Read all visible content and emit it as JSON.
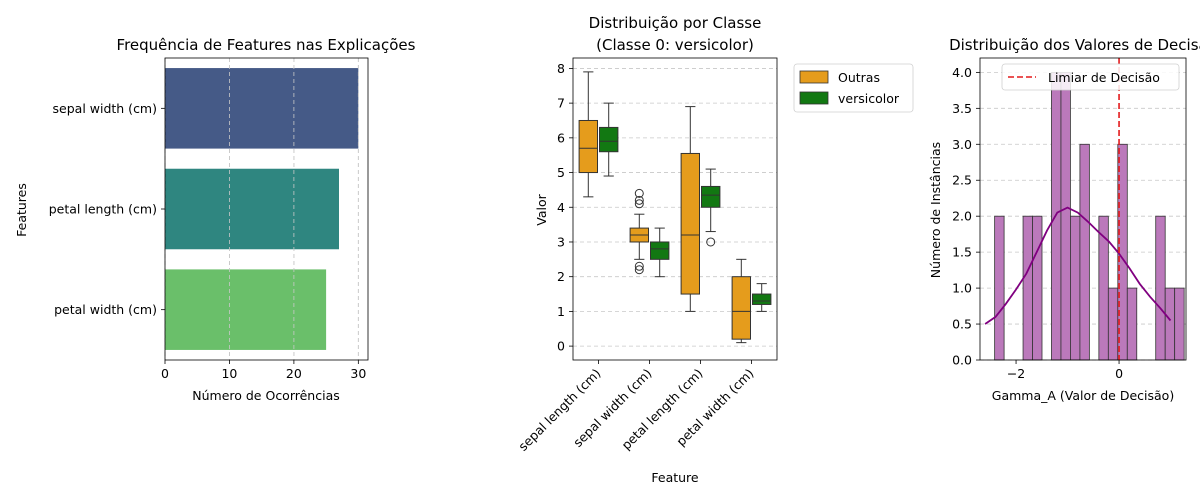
{
  "chart_data": [
    {
      "type": "bar",
      "orientation": "horizontal",
      "title": "Frequência de Features nas Explicações",
      "xlabel": "Número de Ocorrências",
      "ylabel": "Features",
      "categories": [
        "sepal width (cm)",
        "petal length (cm)",
        "petal width (cm)"
      ],
      "values": [
        30,
        27,
        25
      ],
      "colors": [
        "#455a87",
        "#2f8680",
        "#6abf6a"
      ],
      "xlim": [
        0,
        31.5
      ],
      "xticks": [
        0,
        10,
        20,
        30
      ],
      "grid": true
    },
    {
      "type": "box",
      "title": "Distribuição por Classe\n(Classe 0: versicolor)",
      "xlabel": "Feature",
      "ylabel": "Valor",
      "categories": [
        "sepal length (cm)",
        "sepal width (cm)",
        "petal length (cm)",
        "petal width (cm)"
      ],
      "ylim": [
        -0.4,
        8.3
      ],
      "yticks": [
        0,
        1,
        2,
        3,
        4,
        5,
        6,
        7,
        8
      ],
      "legend_position": "outside-top-right",
      "grid": true,
      "series": [
        {
          "name": "Outras",
          "color": "#e59c1c",
          "boxes": [
            {
              "min": 4.3,
              "q1": 5.0,
              "median": 5.7,
              "q3": 6.5,
              "max": 7.9,
              "outliers": []
            },
            {
              "min": 2.5,
              "q1": 3.0,
              "median": 3.2,
              "q3": 3.4,
              "max": 3.8,
              "outliers": [
                4.4,
                4.2,
                4.1,
                2.3,
                2.2
              ]
            },
            {
              "min": 1.0,
              "q1": 1.5,
              "median": 3.2,
              "q3": 5.55,
              "max": 6.9,
              "outliers": []
            },
            {
              "min": 0.1,
              "q1": 0.2,
              "median": 1.0,
              "q3": 2.0,
              "max": 2.5,
              "outliers": []
            }
          ]
        },
        {
          "name": "versicolor",
          "color": "#127812",
          "boxes": [
            {
              "min": 4.9,
              "q1": 5.6,
              "median": 5.9,
              "q3": 6.3,
              "max": 7.0,
              "outliers": []
            },
            {
              "min": 2.0,
              "q1": 2.5,
              "median": 2.8,
              "q3": 3.0,
              "max": 3.4,
              "outliers": []
            },
            {
              "min": 3.3,
              "q1": 4.0,
              "median": 4.35,
              "q3": 4.6,
              "max": 5.1,
              "outliers": [
                3.0
              ]
            },
            {
              "min": 1.0,
              "q1": 1.2,
              "median": 1.3,
              "q3": 1.5,
              "max": 1.8,
              "outliers": []
            }
          ]
        }
      ]
    },
    {
      "type": "histogram",
      "title": "Distribuição dos Valores de Decisão",
      "xlabel": "Gamma_A (Valor de Decisão)",
      "ylabel": "Número de Instâncias",
      "bar_color": "#bb79bb",
      "kde_color": "#800080",
      "threshold": {
        "value": 0,
        "label": "Limiar de Decisão",
        "color": "#e41a1c"
      },
      "xlim": [
        -2.7,
        1.3
      ],
      "ylim": [
        0,
        4.2
      ],
      "xticks": [
        -2,
        0
      ],
      "yticks": [
        0.0,
        0.5,
        1.0,
        1.5,
        2.0,
        2.5,
        3.0,
        3.5,
        4.0
      ],
      "bin_start": -2.6,
      "bin_width": 0.184,
      "counts": [
        0,
        2,
        0,
        0,
        2,
        2,
        0,
        4,
        4,
        2,
        3,
        0,
        2,
        1,
        3,
        1,
        0,
        0,
        2,
        1,
        1
      ],
      "kde_x": [
        -2.6,
        -2.4,
        -2.2,
        -2.0,
        -1.8,
        -1.6,
        -1.4,
        -1.2,
        -1.0,
        -0.8,
        -0.6,
        -0.4,
        -0.2,
        0.0,
        0.2,
        0.4,
        0.6,
        0.8,
        1.0
      ],
      "kde_y": [
        0.5,
        0.6,
        0.78,
        0.98,
        1.2,
        1.5,
        1.8,
        2.05,
        2.12,
        2.05,
        1.92,
        1.78,
        1.65,
        1.48,
        1.28,
        1.06,
        0.88,
        0.72,
        0.55
      ],
      "legend_position": "upper-right",
      "grid": true
    }
  ]
}
